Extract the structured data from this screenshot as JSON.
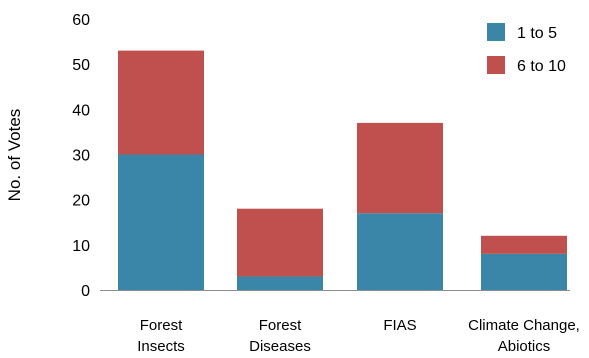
{
  "chart_data": {
    "type": "bar",
    "stacked": true,
    "categories": [
      [
        "Forest",
        "Insects"
      ],
      [
        "Forest",
        "Diseases"
      ],
      [
        "FIAS"
      ],
      [
        "Climate Change,",
        "Abiotics"
      ]
    ],
    "series": [
      {
        "name": "1 to 5",
        "color": "#3a86a8",
        "values": [
          30,
          3,
          17,
          8
        ]
      },
      {
        "name": "6 to 10",
        "color": "#c0504d",
        "values": [
          23,
          15,
          20,
          4
        ]
      }
    ],
    "ylabel": "No. of Votes",
    "ylim": [
      0,
      60
    ],
    "yticks": [
      0,
      10,
      20,
      30,
      40,
      50,
      60
    ],
    "grid": false,
    "legend_position": "top-right"
  }
}
